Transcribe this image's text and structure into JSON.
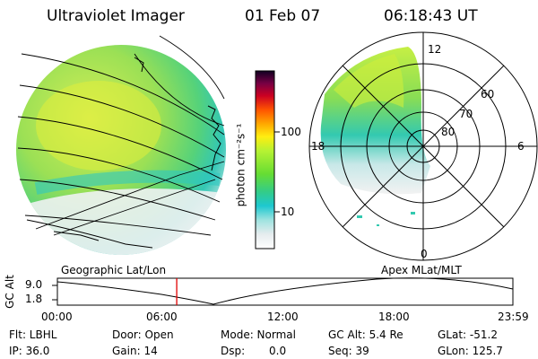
{
  "header": {
    "instrument": "Ultraviolet Imager",
    "date": "01 Feb 07",
    "time": "06:18:43 UT"
  },
  "colorbar": {
    "unit_label": "photon cm⁻²s⁻¹",
    "ticks": [
      "100",
      "10"
    ]
  },
  "polar_plot": {
    "mlt_labels": [
      "12",
      "18",
      "6",
      "0"
    ],
    "lat_labels": [
      "60",
      "70",
      "80"
    ]
  },
  "timeline": {
    "y_axis_label": "GC Alt",
    "y_ticks": [
      "9.0",
      "1.8"
    ],
    "left_caption": "Geographic Lat/Lon",
    "right_caption": "Apex MLat/MLT",
    "x_ticks": [
      "00:00",
      "06:00",
      "12:00",
      "18:00",
      "23:59"
    ],
    "current_time_fraction": 0.262
  },
  "info_rows": [
    [
      "Flt: LBHL",
      "Door: Open",
      "Mode: Normal",
      "GC Alt: 5.4 Re",
      "GLat: -51.2"
    ],
    [
      "IP: 36.0",
      "Gain: 14",
      "Dsp:",
      "0.0",
      "Seq: 39",
      "GLon: 125.7"
    ]
  ]
}
